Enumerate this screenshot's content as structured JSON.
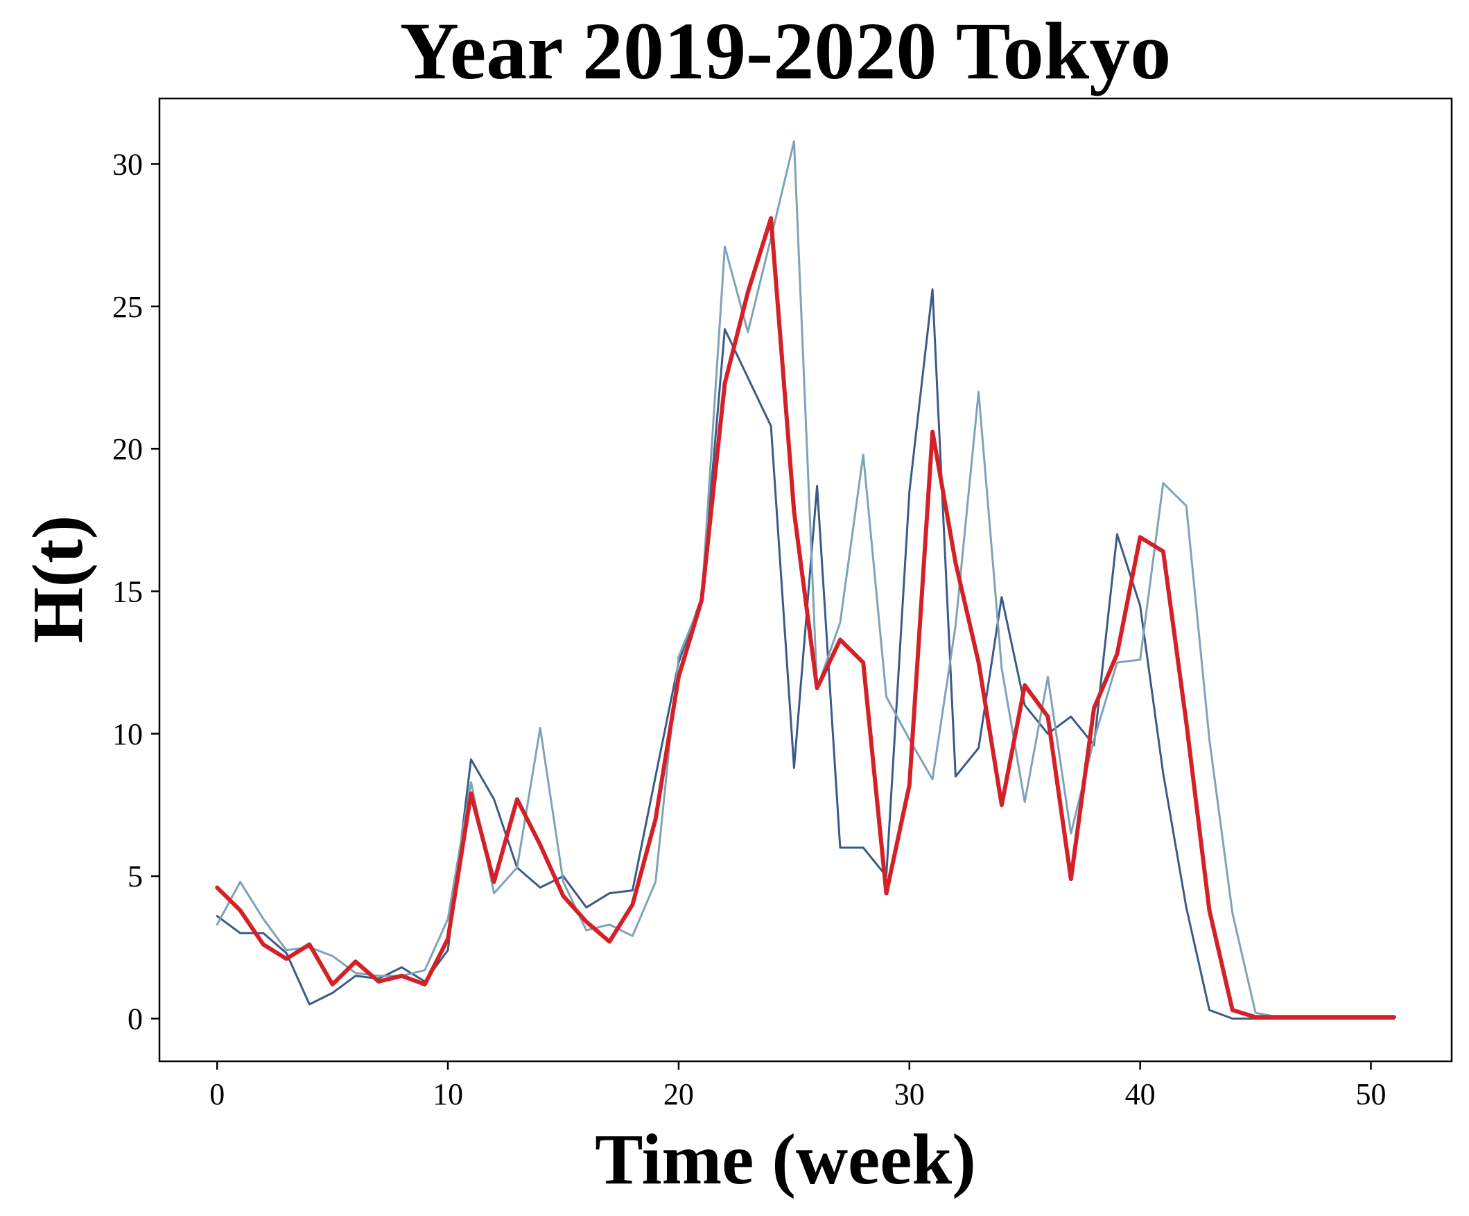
{
  "chart_data": {
    "type": "line",
    "title": "Year 2019-2020 Tokyo",
    "xlabel": "Time (week)",
    "ylabel": "H(t)",
    "xlim": [
      -2.5,
      53.5
    ],
    "ylim": [
      -1.5,
      32.3
    ],
    "xticks": [
      0,
      10,
      20,
      30,
      40,
      50
    ],
    "yticks": [
      0,
      5,
      10,
      15,
      20,
      25,
      30
    ],
    "grid": false,
    "legend": "none",
    "x": [
      0,
      1,
      2,
      3,
      4,
      5,
      6,
      7,
      8,
      9,
      10,
      11,
      12,
      13,
      14,
      15,
      16,
      17,
      18,
      19,
      20,
      21,
      22,
      23,
      24,
      25,
      26,
      27,
      28,
      29,
      30,
      31,
      32,
      33,
      34,
      35,
      36,
      37,
      38,
      39,
      40,
      41,
      42,
      43,
      44,
      45,
      46,
      47,
      48,
      49,
      50,
      51
    ],
    "series": [
      {
        "color": "#3b5a88",
        "width": 3,
        "values": [
          3.6,
          3.0,
          3.0,
          2.3,
          0.5,
          0.9,
          1.5,
          1.4,
          1.8,
          1.3,
          2.4,
          9.1,
          7.7,
          5.3,
          4.6,
          5.0,
          3.9,
          4.4,
          4.5,
          8.5,
          12.5,
          14.8,
          24.2,
          22.5,
          20.8,
          8.8,
          18.7,
          6.0,
          6.0,
          5.0,
          18.5,
          25.6,
          8.5,
          9.5,
          14.8,
          11.0,
          10.0,
          10.6,
          9.6,
          17.0,
          14.5,
          8.6,
          3.9,
          0.3,
          0.0,
          0.0,
          0.0,
          0.0,
          0.0,
          0.0,
          0.0,
          0.0
        ]
      },
      {
        "color": "#7fa3b6",
        "width": 3,
        "values": [
          3.3,
          4.8,
          3.5,
          2.4,
          2.5,
          2.2,
          1.6,
          1.5,
          1.5,
          1.7,
          3.5,
          8.3,
          4.4,
          5.3,
          10.2,
          4.8,
          3.1,
          3.3,
          2.9,
          4.8,
          12.7,
          14.7,
          27.1,
          24.1,
          27.4,
          30.8,
          11.6,
          13.9,
          19.8,
          11.3,
          9.8,
          8.4,
          13.8,
          22.0,
          12.3,
          7.6,
          12.0,
          6.5,
          9.8,
          12.5,
          12.6,
          18.8,
          18.0,
          9.8,
          3.7,
          0.2,
          0.05,
          0.05,
          0.05,
          0.05,
          0.05,
          0.05
        ]
      },
      {
        "color": "#d42027",
        "width": 6,
        "values": [
          4.6,
          3.8,
          2.6,
          2.1,
          2.6,
          1.2,
          2.0,
          1.3,
          1.5,
          1.2,
          2.8,
          7.9,
          4.8,
          7.7,
          6.1,
          4.3,
          3.4,
          2.7,
          4.0,
          7.0,
          12.0,
          14.7,
          22.3,
          25.5,
          28.1,
          17.8,
          11.6,
          13.3,
          12.5,
          4.4,
          8.2,
          20.6,
          16.0,
          12.5,
          7.5,
          11.7,
          10.6,
          4.9,
          10.9,
          12.8,
          16.9,
          16.4,
          10.4,
          3.8,
          0.3,
          0.05,
          0.05,
          0.05,
          0.05,
          0.05,
          0.05,
          0.05
        ]
      }
    ]
  }
}
